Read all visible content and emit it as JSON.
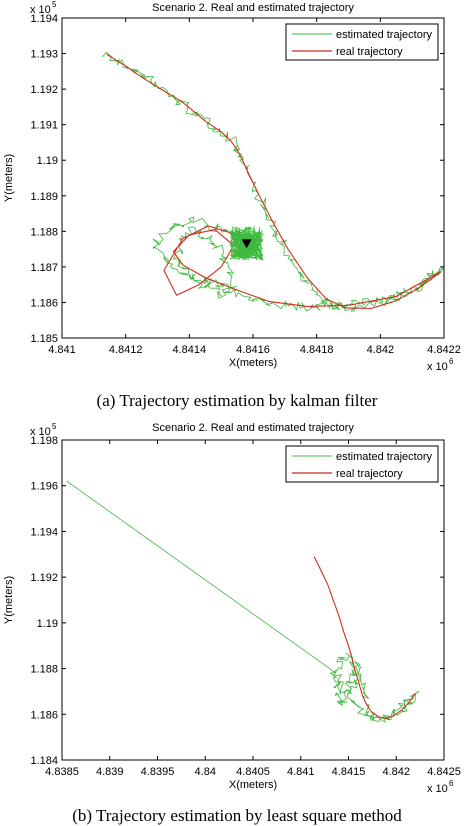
{
  "chart_data": [
    {
      "type": "line",
      "title": "Scenario 2. Real and estimated trajectory",
      "xlabel": "X(meters)",
      "ylabel": "Y(meters)",
      "x_exponent": "x 10",
      "x_exponent_power": "6",
      "y_exponent": "x 10",
      "y_exponent_power": "5",
      "xlim": [
        4.841,
        4.8422
      ],
      "ylim": [
        1.185,
        1.194
      ],
      "xticks": [
        "4.841",
        "4.8412",
        "4.8414",
        "4.8416",
        "4.8418",
        "4.842",
        "4.8422"
      ],
      "yticks": [
        "1.185",
        "1.186",
        "1.187",
        "1.188",
        "1.189",
        "1.19",
        "1.191",
        "1.192",
        "1.193",
        "1.194"
      ],
      "grid": false,
      "legend_position": "top-right",
      "colors": {
        "estimated": "#3cb83c",
        "real": "#d62b1f",
        "marker": "#000000"
      },
      "series": [
        {
          "name": "estimated trajectory",
          "style": "noisy",
          "x": [
            4.84114,
            4.84116,
            4.8412,
            4.84126,
            4.84134,
            4.84138,
            4.8414,
            4.84143,
            4.84148,
            4.84152,
            4.84154,
            4.84155,
            4.84157,
            4.84159,
            4.84161,
            4.84164,
            4.84168,
            4.84174,
            4.8418,
            4.84186,
            4.84192,
            4.842,
            4.84208,
            4.84215,
            4.84219,
            4.84206,
            4.84192,
            4.84178,
            4.84166,
            4.84154,
            4.84145,
            4.84138,
            4.84136,
            4.84138,
            4.84141,
            4.84146,
            4.8415,
            4.84153,
            4.84154,
            4.8415,
            4.84144,
            4.84137,
            4.8413,
            4.8413,
            4.84135,
            4.84141,
            4.84148,
            4.84156,
            4.84158
          ],
          "y": [
            1.19301,
            1.19282,
            1.19263,
            1.19235,
            1.1918,
            1.19158,
            1.19142,
            1.19122,
            1.19098,
            1.19068,
            1.1905,
            1.19023,
            1.1899,
            1.1895,
            1.1891,
            1.1886,
            1.1878,
            1.1869,
            1.18615,
            1.18584,
            1.18582,
            1.186,
            1.18625,
            1.1866,
            1.1869,
            1.18618,
            1.18595,
            1.18586,
            1.18595,
            1.1863,
            1.1866,
            1.1869,
            1.1873,
            1.1877,
            1.1881,
            1.1878,
            1.1874,
            1.1869,
            1.1864,
            1.1862,
            1.1865,
            1.1869,
            1.1874,
            1.1878,
            1.1881,
            1.1883,
            1.1881,
            1.1878,
            1.18766
          ]
        },
        {
          "name": "real trajectory",
          "style": "smooth",
          "x": [
            4.84114,
            4.8412,
            4.84126,
            4.84132,
            4.84138,
            4.84141,
            4.84145,
            4.8415,
            4.84153,
            4.84155,
            4.84157,
            4.84159,
            4.84162,
            4.84166,
            4.84171,
            4.84177,
            4.84183,
            4.84189,
            4.84197,
            4.84205,
            4.84212,
            4.84219,
            4.84205,
            4.8419,
            4.84177,
            4.84165,
            4.84154,
            4.84145,
            4.84138,
            4.84135,
            4.8414,
            4.84148,
            4.84154,
            4.8415,
            4.84143,
            4.84136,
            4.84132,
            4.84138,
            4.84146,
            4.84155,
            4.84158
          ],
          "y": [
            1.19298,
            1.19265,
            1.19228,
            1.19195,
            1.19162,
            1.1914,
            1.1911,
            1.1908,
            1.19055,
            1.1903,
            1.18995,
            1.18955,
            1.189,
            1.1883,
            1.1875,
            1.1867,
            1.1861,
            1.18585,
            1.18583,
            1.18605,
            1.1864,
            1.18686,
            1.18617,
            1.18592,
            1.18589,
            1.18603,
            1.18638,
            1.1867,
            1.18705,
            1.18743,
            1.1879,
            1.18805,
            1.1876,
            1.187,
            1.1865,
            1.1862,
            1.1869,
            1.1878,
            1.18815,
            1.1879,
            1.18766
          ]
        }
      ],
      "annotations": [
        {
          "type": "marker",
          "shape": "triangle-down",
          "x": 4.84158,
          "y": 1.18766
        }
      ]
    },
    {
      "type": "line",
      "title": "Scenario 2. Real and estimated trajectory",
      "xlabel": "X(meters)",
      "ylabel": "Y(meters)",
      "x_exponent": "x 10",
      "x_exponent_power": "6",
      "y_exponent": "x 10",
      "y_exponent_power": "5",
      "xlim": [
        4.8385,
        4.8425
      ],
      "ylim": [
        1.184,
        1.198
      ],
      "xticks": [
        "4.8385",
        "4.839",
        "4.8395",
        "4.84",
        "4.8405",
        "4.841",
        "4.8415",
        "4.842",
        "4.8425"
      ],
      "yticks": [
        "1.184",
        "1.186",
        "1.188",
        "1.19",
        "1.192",
        "1.194",
        "1.196",
        "1.198"
      ],
      "grid": false,
      "legend_position": "top-right",
      "colors": {
        "estimated": "#3cb83c",
        "real": "#d62b1f"
      },
      "series": [
        {
          "name": "estimated trajectory",
          "style": "noisy",
          "x": [
            4.83855,
            4.84132,
            4.84136,
            4.8414,
            4.84138,
            4.84142,
            4.84148,
            4.84154,
            4.8416,
            4.84166,
            4.84172,
            4.8418,
            4.8419,
            4.842,
            4.84208,
            4.84216,
            4.8422,
            4.84206,
            4.84192,
            4.84178,
            4.84166,
            4.84155,
            4.84146,
            4.8414,
            4.84138,
            4.84142,
            4.8415,
            4.84156,
            4.8416,
            4.84152
          ],
          "y": [
            1.1962,
            1.18795,
            1.1876,
            1.1872,
            1.1868,
            1.1865,
            1.187,
            1.1876,
            1.1882,
            1.187,
            1.186,
            1.18585,
            1.18582,
            1.186,
            1.1863,
            1.1867,
            1.187,
            1.1863,
            1.18598,
            1.18588,
            1.1861,
            1.1866,
            1.187,
            1.1874,
            1.1879,
            1.1883,
            1.1887,
            1.1882,
            1.1876,
            1.187
          ]
        },
        {
          "name": "real trajectory",
          "style": "smooth",
          "x": [
            4.84114,
            4.8412,
            4.84128,
            4.84134,
            4.8414,
            4.84145,
            4.8415,
            4.84154,
            4.84157,
            4.8416,
            4.84162,
            4.84164,
            4.84168,
            4.84174,
            4.84182,
            4.8419,
            4.84198,
            4.84206,
            4.84214,
            4.8422
          ],
          "y": [
            1.1929,
            1.1924,
            1.1917,
            1.191,
            1.1903,
            1.1896,
            1.189,
            1.1884,
            1.1879,
            1.1875,
            1.1872,
            1.1869,
            1.1865,
            1.1861,
            1.18588,
            1.18582,
            1.18595,
            1.1862,
            1.18655,
            1.1869
          ]
        }
      ]
    }
  ],
  "captions": {
    "a": "(a) Trajectory estimation by kalman filter",
    "b": "(b) Trajectory estimation by least square method"
  }
}
